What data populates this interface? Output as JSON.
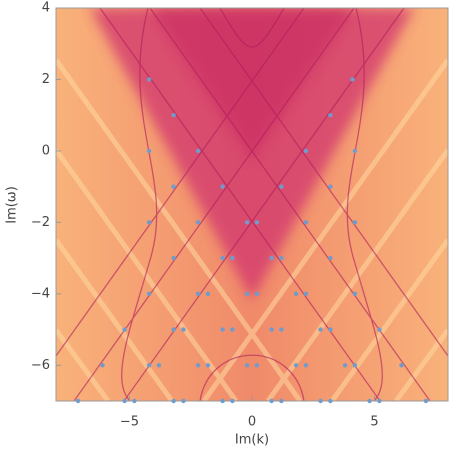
{
  "chart_data": {
    "type": "scatter",
    "xlabel": "Im(k)",
    "ylabel": "Im(ω)",
    "xlim": [
      -8,
      8
    ],
    "ylim": [
      -7,
      4
    ],
    "xticks": [
      {
        "value": -5,
        "label": "−5"
      },
      0,
      5
    ],
    "yticks": [
      {
        "value": -6,
        "label": "−6"
      },
      {
        "value": -4,
        "label": "−4"
      },
      {
        "value": -2,
        "label": "−2"
      },
      0,
      2,
      4
    ],
    "series": [
      {
        "color": "#6f9ccc",
        "x": [
          -4.2,
          4.1,
          -3.2,
          3.2,
          -4.2,
          -2.2,
          2.2,
          4.2,
          -3.2,
          -1.2,
          1.2,
          3.2,
          -4.2,
          -2.2,
          -0.2,
          0.2,
          2.2,
          4.2,
          -3.2,
          -1.2,
          -0.8,
          0.8,
          1.2,
          3.2,
          -4.2,
          -2.2,
          -1.8,
          -0.2,
          0.2,
          1.8,
          2.2,
          4.2,
          -5.2,
          -3.2,
          -2.8,
          -1.2,
          -0.8,
          0.8,
          1.2,
          2.8,
          3.2,
          5.2,
          -6.1,
          -4.2,
          -3.8,
          -2.2,
          -1.8,
          -0.2,
          0.2,
          1.8,
          2.2,
          3.8,
          4.2,
          6.1,
          -7.1,
          -5.2,
          -4.8,
          -3.2,
          -2.8,
          -1.2,
          -0.8,
          0.8,
          1.2,
          2.8,
          3.2,
          4.8,
          5.2,
          7.1
        ],
        "y": [
          2,
          2,
          1,
          1,
          0,
          0,
          0,
          0,
          -1,
          -1,
          -1,
          -1,
          -2,
          -2,
          -2,
          -2,
          -2,
          -2,
          -3,
          -3,
          -3,
          -3,
          -3,
          -3,
          -4,
          -4,
          -4,
          -4,
          -4,
          -4,
          -4,
          -4,
          -5,
          -5,
          -5,
          -5,
          -5,
          -5,
          -5,
          -5,
          -5,
          -5,
          -6,
          -6,
          -6,
          -6,
          -6,
          -6,
          -6,
          -6,
          -6,
          -6,
          -6,
          -6,
          -7,
          -7,
          -7,
          -7,
          -7,
          -7,
          -7,
          -7,
          -7,
          -7,
          -7,
          -7,
          -7,
          -7
        ]
      }
    ]
  }
}
